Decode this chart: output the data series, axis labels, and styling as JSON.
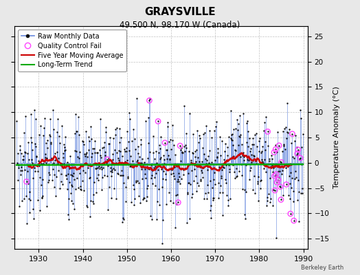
{
  "title": "GRAYSVILLE",
  "subtitle": "49.500 N, 98.170 W (Canada)",
  "ylabel": "Temperature Anomaly (°C)",
  "credit": "Berkeley Earth",
  "xlim": [
    1924.5,
    1991
  ],
  "ylim": [
    -17,
    27
  ],
  "yticks": [
    -15,
    -10,
    -5,
    0,
    5,
    10,
    15,
    20,
    25
  ],
  "xticks": [
    1930,
    1940,
    1950,
    1960,
    1970,
    1980,
    1990
  ],
  "bg_color": "#e8e8e8",
  "plot_bg_color": "#ffffff",
  "grid_color": "#bbbbbb",
  "raw_line_color": "#6688dd",
  "raw_marker_color": "#111111",
  "qc_fail_color": "#ff44ff",
  "moving_avg_color": "#cc0000",
  "trend_color": "#00aa00",
  "seed": 7,
  "n_months": 756,
  "start_year": 1925.0,
  "end_year": 1989.9
}
